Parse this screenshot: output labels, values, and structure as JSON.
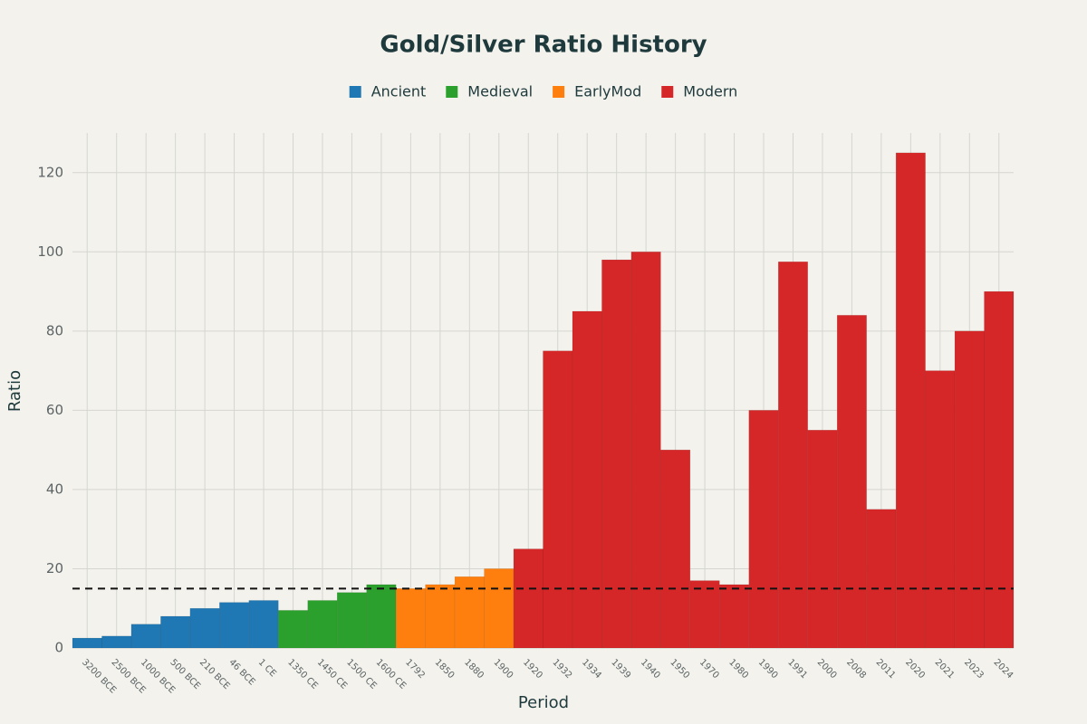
{
  "chart_data": {
    "type": "bar",
    "title": "Gold/Silver Ratio History",
    "x_label": "Period",
    "y_label": "Ratio",
    "categories": [
      "3200 BCE",
      "2500 BCE",
      "1000 BCE",
      "500 BCE",
      "210 BCE",
      "46 BCE",
      "1 CE",
      "1350 CE",
      "1450 CE",
      "1500 CE",
      "1600 CE",
      "1792",
      "1850",
      "1880",
      "1900",
      "1920",
      "1932",
      "1934",
      "1939",
      "1940",
      "1950",
      "1970",
      "1980",
      "1990",
      "1991",
      "2000",
      "2008",
      "2011",
      "2020",
      "2021",
      "2023",
      "2024"
    ],
    "series": [
      {
        "name": "Ancient",
        "color": "#1f77b4",
        "values": [
          2.5,
          3,
          6,
          8,
          10,
          11.5,
          12,
          null,
          null,
          null,
          null,
          null,
          null,
          null,
          null,
          null,
          null,
          null,
          null,
          null,
          null,
          null,
          null,
          null,
          null,
          null,
          null,
          null,
          null,
          null,
          null,
          null
        ]
      },
      {
        "name": "Medieval",
        "color": "#2ca02c",
        "values": [
          null,
          null,
          null,
          null,
          null,
          null,
          null,
          9.5,
          12,
          14,
          16,
          null,
          null,
          null,
          null,
          null,
          null,
          null,
          null,
          null,
          null,
          null,
          null,
          null,
          null,
          null,
          null,
          null,
          null,
          null,
          null,
          null
        ]
      },
      {
        "name": "EarlyMod",
        "color": "#ff7f0e",
        "values": [
          null,
          null,
          null,
          null,
          null,
          null,
          null,
          null,
          null,
          null,
          null,
          15,
          16,
          18,
          20,
          null,
          null,
          null,
          null,
          null,
          null,
          null,
          null,
          null,
          null,
          null,
          null,
          null,
          null,
          null,
          null,
          null
        ]
      },
      {
        "name": "Modern",
        "color": "#d62728",
        "values": [
          null,
          null,
          null,
          null,
          null,
          null,
          null,
          null,
          null,
          null,
          null,
          null,
          null,
          null,
          null,
          25,
          75,
          85,
          98,
          100,
          50,
          17,
          16,
          60,
          97.5,
          55,
          84,
          35,
          125,
          70,
          80,
          90
        ]
      }
    ],
    "reference_line": 15,
    "ylim": [
      0,
      130
    ],
    "yticks": [
      0,
      20,
      40,
      60,
      80,
      100,
      120
    ],
    "grid": true
  }
}
